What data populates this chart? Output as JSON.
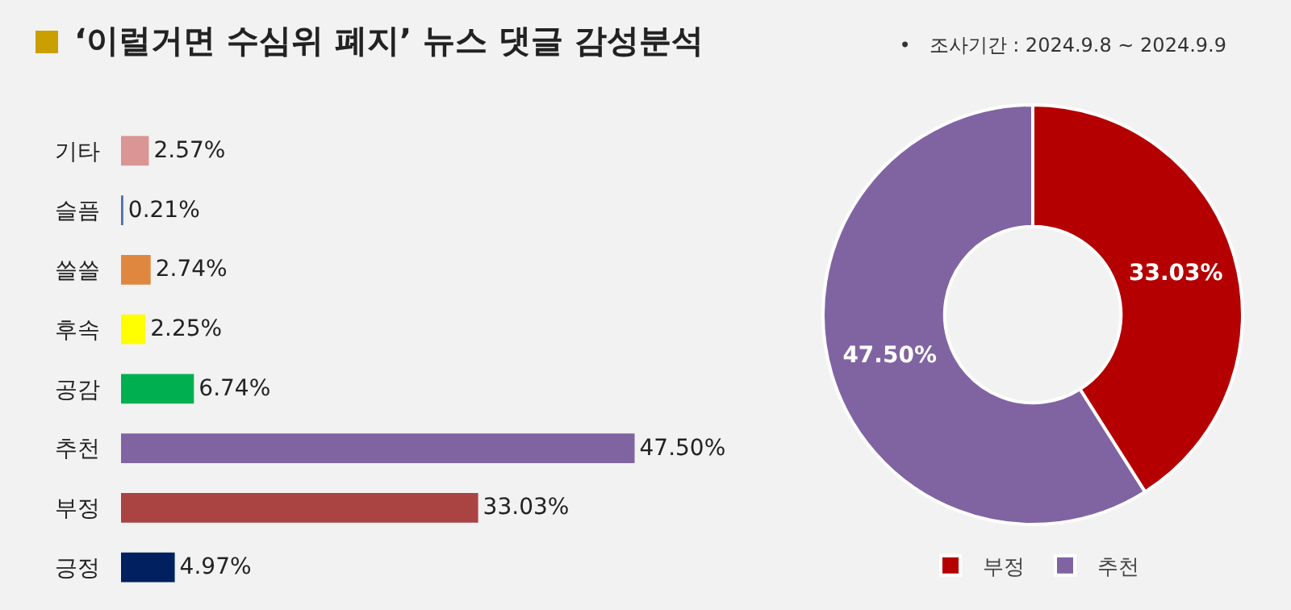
{
  "chart_data": [
    {
      "type": "bar",
      "title": "‘이럴거면 수심위 폐지’ 뉴스 댓글 감성분석",
      "annotations": [
        "•   조사기간 : 2024.9.8 ~ 2024.9.9"
      ],
      "orientation": "horizontal",
      "tick_labels": "y",
      "legend": false,
      "categories": [
        "기타",
        "슬픔",
        "쓸쓸",
        "후속",
        "공감",
        "추천",
        "부정",
        "긍정"
      ],
      "values": [
        2.57,
        0.21,
        2.74,
        2.25,
        6.74,
        47.5,
        33.03,
        4.97
      ],
      "colors": [
        "#d99694",
        "#4f6eb0",
        "#e0873f",
        "#ffff00",
        "#00b050",
        "#8064a2",
        "#a94442",
        "#002060"
      ],
      "value_labels": [
        "2.57%",
        "0.21%",
        "2.74%",
        "2.25%",
        "6.74%",
        "47.50%",
        "33.03%",
        "4.97%"
      ]
    },
    {
      "type": "donut",
      "legend": "bottom",
      "categories": [
        "부정",
        "추천"
      ],
      "values": [
        33.03,
        47.5
      ],
      "colors": [
        "#b40000",
        "#8064a2"
      ],
      "value_labels": [
        "33.03%",
        "47.50%"
      ]
    }
  ]
}
